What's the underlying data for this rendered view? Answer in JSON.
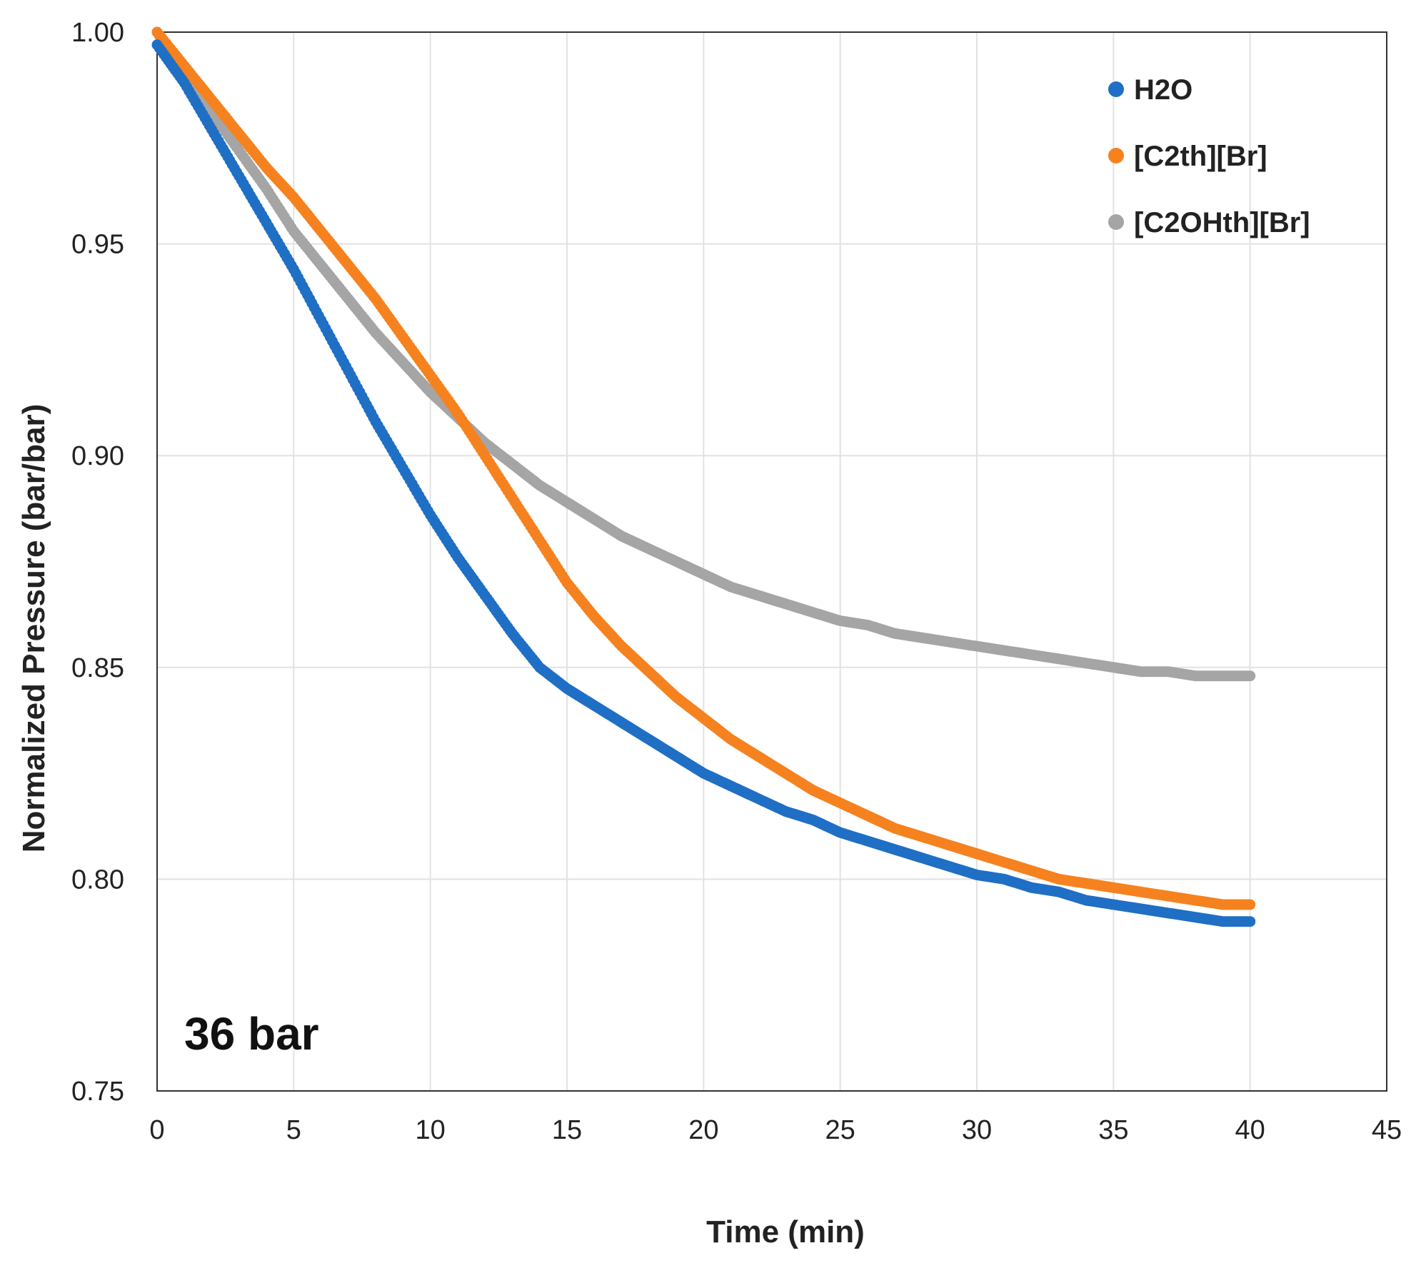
{
  "chart_data": {
    "type": "scatter",
    "title": "",
    "xlabel": "Time (min)",
    "ylabel": "Normalized Pressure (bar/bar)",
    "xlim": [
      0,
      45
    ],
    "ylim": [
      0.75,
      1.0
    ],
    "x_ticks": [
      0,
      5,
      10,
      15,
      20,
      25,
      30,
      35,
      40,
      45
    ],
    "y_ticks": [
      0.75,
      0.8,
      0.85,
      0.9,
      0.95,
      1.0
    ],
    "x_tick_labels": [
      "0",
      "5",
      "10",
      "15",
      "20",
      "25",
      "30",
      "35",
      "40",
      "45"
    ],
    "y_tick_labels": [
      "0.75",
      "0.80",
      "0.85",
      "0.90",
      "0.95",
      "1.00"
    ],
    "grid": true,
    "legend_position": "top-right",
    "annotation": "36 bar",
    "series": [
      {
        "name": "H2O",
        "color": "#1f6fc5",
        "points": [
          [
            0,
            0.997
          ],
          [
            1,
            0.988
          ],
          [
            2,
            0.977
          ],
          [
            3,
            0.966
          ],
          [
            4,
            0.955
          ],
          [
            5,
            0.944
          ],
          [
            6,
            0.932
          ],
          [
            7,
            0.92
          ],
          [
            8,
            0.908
          ],
          [
            9,
            0.897
          ],
          [
            10,
            0.886
          ],
          [
            11,
            0.876
          ],
          [
            12,
            0.867
          ],
          [
            13,
            0.858
          ],
          [
            14,
            0.85
          ],
          [
            15,
            0.845
          ],
          [
            16,
            0.841
          ],
          [
            17,
            0.837
          ],
          [
            18,
            0.833
          ],
          [
            19,
            0.829
          ],
          [
            20,
            0.825
          ],
          [
            21,
            0.822
          ],
          [
            22,
            0.819
          ],
          [
            23,
            0.816
          ],
          [
            24,
            0.814
          ],
          [
            25,
            0.811
          ],
          [
            26,
            0.809
          ],
          [
            27,
            0.807
          ],
          [
            28,
            0.805
          ],
          [
            29,
            0.803
          ],
          [
            30,
            0.801
          ],
          [
            31,
            0.8
          ],
          [
            32,
            0.798
          ],
          [
            33,
            0.797
          ],
          [
            34,
            0.795
          ],
          [
            35,
            0.794
          ],
          [
            36,
            0.793
          ],
          [
            37,
            0.792
          ],
          [
            38,
            0.791
          ],
          [
            39,
            0.79
          ],
          [
            40,
            0.79
          ]
        ]
      },
      {
        "name": "[C2th][Br]",
        "color": "#f5821f",
        "points": [
          [
            0,
            1.0
          ],
          [
            1,
            0.992
          ],
          [
            2,
            0.984
          ],
          [
            3,
            0.976
          ],
          [
            4,
            0.968
          ],
          [
            5,
            0.961
          ],
          [
            6,
            0.953
          ],
          [
            7,
            0.945
          ],
          [
            8,
            0.937
          ],
          [
            9,
            0.928
          ],
          [
            10,
            0.919
          ],
          [
            11,
            0.91
          ],
          [
            12,
            0.9
          ],
          [
            13,
            0.89
          ],
          [
            14,
            0.88
          ],
          [
            15,
            0.87
          ],
          [
            16,
            0.862
          ],
          [
            17,
            0.855
          ],
          [
            18,
            0.849
          ],
          [
            19,
            0.843
          ],
          [
            20,
            0.838
          ],
          [
            21,
            0.833
          ],
          [
            22,
            0.829
          ],
          [
            23,
            0.825
          ],
          [
            24,
            0.821
          ],
          [
            25,
            0.818
          ],
          [
            26,
            0.815
          ],
          [
            27,
            0.812
          ],
          [
            28,
            0.81
          ],
          [
            29,
            0.808
          ],
          [
            30,
            0.806
          ],
          [
            31,
            0.804
          ],
          [
            32,
            0.802
          ],
          [
            33,
            0.8
          ],
          [
            34,
            0.799
          ],
          [
            35,
            0.798
          ],
          [
            36,
            0.797
          ],
          [
            37,
            0.796
          ],
          [
            38,
            0.795
          ],
          [
            39,
            0.794
          ],
          [
            40,
            0.794
          ]
        ]
      },
      {
        "name": "[C2OHth][Br]",
        "color": "#a5a5a5",
        "points": [
          [
            0,
            1.0
          ],
          [
            1,
            0.99
          ],
          [
            2,
            0.981
          ],
          [
            3,
            0.972
          ],
          [
            4,
            0.963
          ],
          [
            5,
            0.953
          ],
          [
            6,
            0.945
          ],
          [
            7,
            0.937
          ],
          [
            8,
            0.929
          ],
          [
            9,
            0.922
          ],
          [
            10,
            0.915
          ],
          [
            11,
            0.909
          ],
          [
            12,
            0.903
          ],
          [
            13,
            0.898
          ],
          [
            14,
            0.893
          ],
          [
            15,
            0.889
          ],
          [
            16,
            0.885
          ],
          [
            17,
            0.881
          ],
          [
            18,
            0.878
          ],
          [
            19,
            0.875
          ],
          [
            20,
            0.872
          ],
          [
            21,
            0.869
          ],
          [
            22,
            0.867
          ],
          [
            23,
            0.865
          ],
          [
            24,
            0.863
          ],
          [
            25,
            0.861
          ],
          [
            26,
            0.86
          ],
          [
            27,
            0.858
          ],
          [
            28,
            0.857
          ],
          [
            29,
            0.856
          ],
          [
            30,
            0.855
          ],
          [
            31,
            0.854
          ],
          [
            32,
            0.853
          ],
          [
            33,
            0.852
          ],
          [
            34,
            0.851
          ],
          [
            35,
            0.85
          ],
          [
            36,
            0.849
          ],
          [
            37,
            0.849
          ],
          [
            38,
            0.848
          ],
          [
            39,
            0.848
          ],
          [
            40,
            0.848
          ]
        ]
      }
    ]
  }
}
